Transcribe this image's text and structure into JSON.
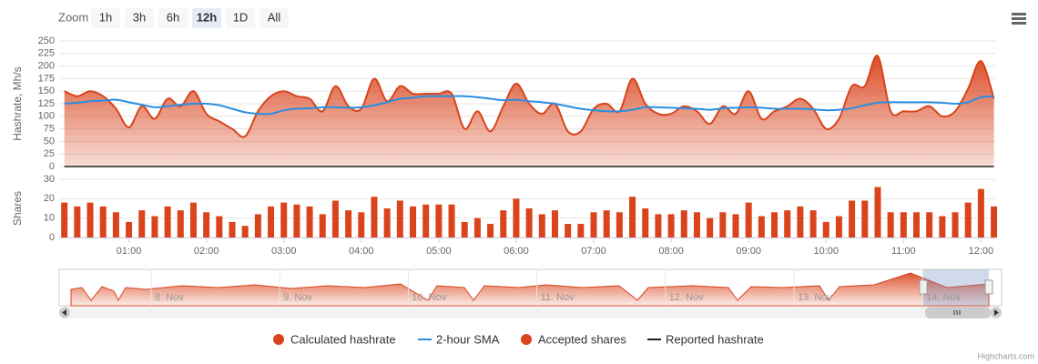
{
  "zoom": {
    "label": "Zoom",
    "buttons": [
      "1h",
      "3h",
      "6h",
      "12h",
      "1D",
      "All"
    ],
    "selected": 3
  },
  "navigator": {
    "labels": [
      "8. Nov",
      "9. Nov",
      "10. Nov",
      "11. Nov",
      "12. Nov",
      "13. Nov",
      "14. Nov"
    ]
  },
  "credits": "Highcharts.com",
  "chart_data": {
    "type": "stock",
    "ylabel": "Hashrate, Mh/s",
    "y2label": "Shares",
    "ylim": [
      0,
      250
    ],
    "yticks": [
      0,
      25,
      50,
      75,
      100,
      125,
      150,
      175,
      200,
      225,
      250
    ],
    "y2lim": [
      0,
      30
    ],
    "y2ticks": [
      0,
      10,
      20,
      30
    ],
    "xlim": [
      6,
      731
    ],
    "xticks": [
      {
        "value": 60,
        "label": "01:00"
      },
      {
        "value": 120,
        "label": "02:00"
      },
      {
        "value": 180,
        "label": "03:00"
      },
      {
        "value": 240,
        "label": "04:00"
      },
      {
        "value": 300,
        "label": "05:00"
      },
      {
        "value": 360,
        "label": "06:00"
      },
      {
        "value": 420,
        "label": "07:00"
      },
      {
        "value": 480,
        "label": "08:00"
      },
      {
        "value": 540,
        "label": "09:00"
      },
      {
        "value": 600,
        "label": "10:00"
      },
      {
        "value": 660,
        "label": "11:00"
      },
      {
        "value": 720,
        "label": "12:00"
      }
    ],
    "grid": true,
    "legend": "bottom",
    "x": [
      10,
      20,
      30,
      40,
      50,
      60,
      70,
      80,
      90,
      100,
      110,
      120,
      130,
      140,
      150,
      160,
      170,
      180,
      190,
      200,
      210,
      220,
      230,
      240,
      250,
      260,
      270,
      280,
      290,
      300,
      310,
      320,
      330,
      340,
      350,
      360,
      370,
      380,
      390,
      400,
      410,
      420,
      430,
      440,
      450,
      460,
      470,
      480,
      490,
      500,
      510,
      520,
      530,
      540,
      550,
      560,
      570,
      580,
      590,
      600,
      610,
      620,
      630,
      640,
      650,
      660,
      670,
      680,
      690,
      700,
      710,
      720,
      730
    ],
    "series": [
      {
        "name": "Calculated hashrate",
        "type": "areaspline",
        "color": "#d9441c",
        "values": [
          150,
          140,
          150,
          140,
          115,
          78,
          120,
          95,
          135,
          120,
          150,
          105,
          90,
          75,
          60,
          110,
          140,
          150,
          140,
          135,
          110,
          160,
          120,
          115,
          175,
          130,
          160,
          145,
          145,
          145,
          145,
          75,
          110,
          70,
          120,
          165,
          125,
          105,
          125,
          70,
          70,
          115,
          125,
          110,
          175,
          125,
          105,
          105,
          120,
          110,
          85,
          120,
          105,
          150,
          95,
          110,
          120,
          135,
          115,
          75,
          95,
          160,
          160,
          220,
          110,
          110,
          110,
          120,
          100,
          110,
          155,
          210,
          135
        ]
      },
      {
        "name": "2-hour SMA",
        "type": "spline",
        "color": "#2a8ee0",
        "values": [
          125,
          127,
          130,
          131,
          133,
          128,
          123,
          118,
          120,
          123,
          125,
          125,
          122,
          115,
          108,
          105,
          105,
          112,
          115,
          116,
          118,
          118,
          117,
          118,
          122,
          128,
          135,
          137,
          140,
          140,
          140,
          140,
          138,
          135,
          132,
          133,
          130,
          128,
          125,
          120,
          115,
          112,
          110,
          110,
          113,
          118,
          118,
          117,
          116,
          115,
          113,
          116,
          117,
          118,
          117,
          115,
          115,
          115,
          114,
          112,
          113,
          116,
          122,
          127,
          128,
          128,
          128,
          128,
          127,
          125,
          128,
          138,
          140
        ]
      },
      {
        "name": "Accepted shares",
        "type": "column",
        "axis": "y2",
        "color": "#d9441c",
        "values": [
          18,
          16,
          18,
          16,
          13,
          8,
          14,
          11,
          16,
          14,
          18,
          13,
          11,
          8,
          6,
          12,
          16,
          18,
          17,
          16,
          12,
          19,
          14,
          13,
          21,
          15,
          19,
          16,
          17,
          17,
          17,
          8,
          10,
          7,
          14,
          20,
          15,
          12,
          14,
          7,
          7,
          13,
          14,
          13,
          21,
          15,
          12,
          12,
          14,
          13,
          10,
          13,
          12,
          18,
          11,
          13,
          14,
          16,
          14,
          8,
          11,
          19,
          19,
          26,
          13,
          13,
          13,
          13,
          11,
          13,
          18,
          25,
          16
        ]
      },
      {
        "name": "Reported hashrate",
        "type": "line",
        "color": "#222222",
        "values": [
          0,
          0,
          0,
          0,
          0,
          0,
          0,
          0,
          0,
          0,
          0,
          0,
          0,
          0,
          0,
          0,
          0,
          0,
          0,
          0,
          0,
          0,
          0,
          0,
          0,
          0,
          0,
          0,
          0,
          0,
          0,
          0,
          0,
          0,
          0,
          0,
          0,
          0,
          0,
          0,
          0,
          0,
          0,
          0,
          0,
          0,
          0,
          0,
          0,
          0,
          0,
          0,
          0,
          0,
          0,
          0,
          0,
          0,
          0,
          0,
          0,
          0,
          0,
          0,
          0,
          0,
          0,
          0,
          0,
          0,
          0,
          0,
          0
        ]
      }
    ]
  }
}
